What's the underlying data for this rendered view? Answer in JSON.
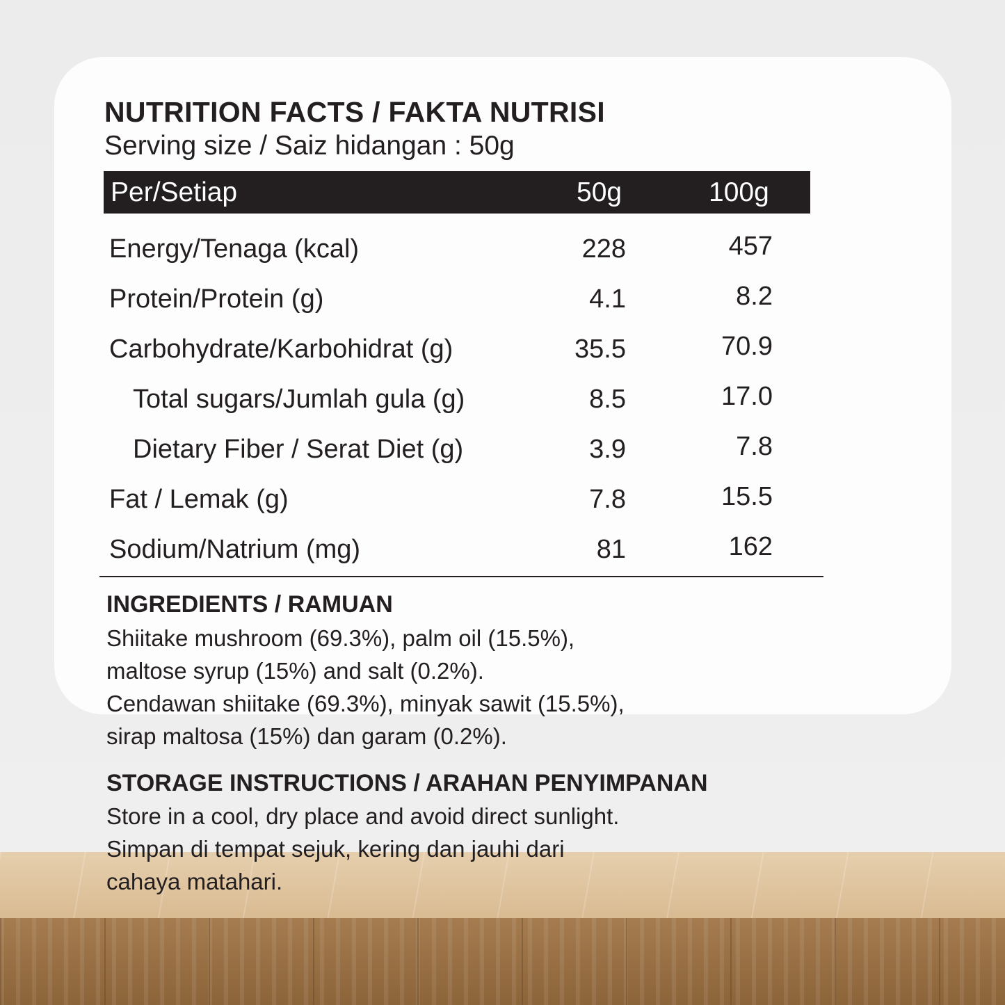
{
  "title": "NUTRITION FACTS / FAKTA NUTRISI",
  "serving": "Serving size / Saiz hidangan : 50g",
  "table": {
    "header": {
      "label": "Per/Setiap",
      "col1": "50g",
      "col2": "100g"
    },
    "rows": [
      {
        "label": "Energy/Tenaga (kcal)",
        "v50": "228",
        "v100": "457"
      },
      {
        "label": "Protein/Protein (g)",
        "v50": "4.1",
        "v100": "8.2"
      },
      {
        "label": "Carbohydrate/Karbohidrat (g)",
        "v50": "35.5",
        "v100": "70.9"
      },
      {
        "label": "Total sugars/Jumlah gula (g)",
        "v50": "8.5",
        "v100": "17.0"
      },
      {
        "label": "Dietary Fiber / Serat Diet (g)",
        "v50": "3.9",
        "v100": "7.8"
      },
      {
        "label": "Fat / Lemak (g)",
        "v50": "7.8",
        "v100": "15.5"
      },
      {
        "label": "Sodium/Natrium (mg)",
        "v50": "81",
        "v100": "162"
      }
    ]
  },
  "ingredients": {
    "heading": "INGREDIENTS / RAMUAN",
    "lines": [
      "Shiitake mushroom (69.3%), palm oil (15.5%),",
      "maltose syrup (15%) and salt (0.2%).",
      "Cendawan shiitake (69.3%), minyak sawit (15.5%),",
      "sirap maltosa (15%) dan garam (0.2%)."
    ]
  },
  "storage": {
    "heading": "STORAGE INSTRUCTIONS / ARAHAN PENYIMPANAN",
    "lines": [
      "Store in a cool, dry place and avoid direct sunlight.",
      "Simpan di tempat sejuk, kering dan jauhi dari",
      "cahaya matahari."
    ]
  }
}
